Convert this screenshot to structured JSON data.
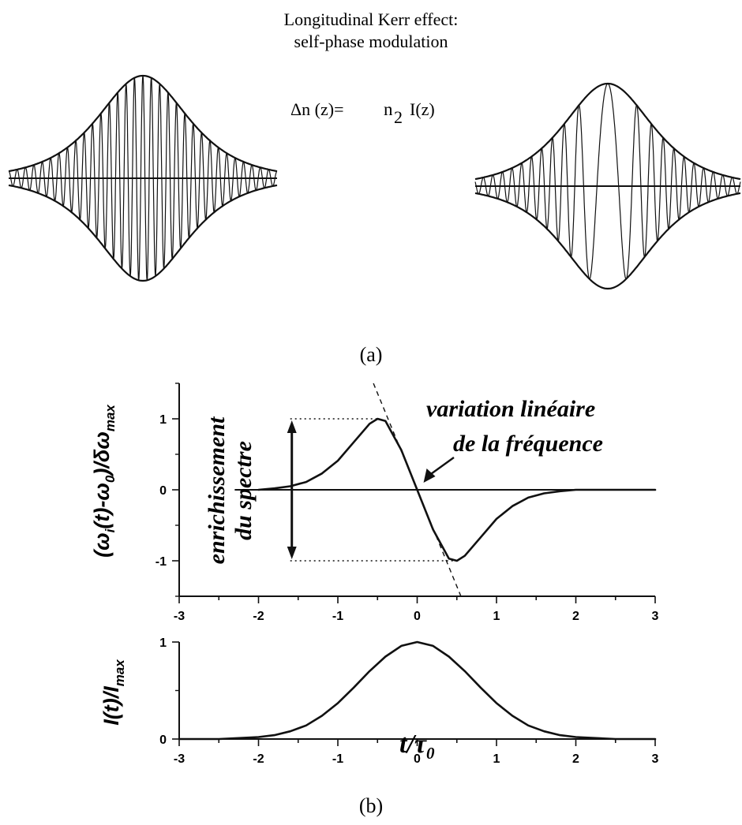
{
  "part_a": {
    "title_line1": "Longitudinal Kerr effect:",
    "title_line2": "self-phase modulation",
    "formula_lhs": "Δn (z)=",
    "formula_n": "n",
    "formula_sub": "2",
    "formula_rhs": "I(z)",
    "caption": "(a)"
  },
  "part_b": {
    "caption": "(b)",
    "top_ylabel": "(ω_i(t)-ω_0)/δω_max",
    "bottom_ylabel": "I(t)/I_max",
    "xlabel": "t/τ_0",
    "annotation_spectrum_line1": "enrichissement",
    "annotation_spectrum_line2": "du spectre",
    "annotation_linear_line1": "variation linéaire",
    "annotation_linear_line2": "de la fréquence"
  },
  "chart_data": [
    {
      "type": "line",
      "panel": "top",
      "xlabel": "",
      "ylabel": "(ω_i(t)-ω_0)/δω_max",
      "xlim": [
        -3,
        3
      ],
      "ylim": [
        -1.5,
        1.5
      ],
      "xticks": [
        "-3",
        "-2",
        "-1",
        "0",
        "1",
        "2",
        "3"
      ],
      "yticks": [
        "-1",
        "0",
        "1"
      ],
      "series": [
        {
          "x": [
            -2.0,
            -1.8,
            -1.6,
            -1.4,
            -1.2,
            -1.0,
            -0.8,
            -0.6,
            -0.5,
            -0.4,
            -0.2,
            0.0,
            0.2,
            0.4,
            0.5,
            0.6,
            0.8,
            1.0,
            1.2,
            1.4,
            1.6,
            1.8,
            2.0,
            2.2,
            2.5,
            3.0
          ],
          "y": [
            0.0,
            0.02,
            0.05,
            0.11,
            0.23,
            0.41,
            0.67,
            0.93,
            1.0,
            0.97,
            0.56,
            0.0,
            -0.56,
            -0.97,
            -1.0,
            -0.93,
            -0.67,
            -0.41,
            -0.23,
            -0.11,
            -0.05,
            -0.02,
            -0.0,
            0.0,
            0.0,
            0.0
          ]
        }
      ],
      "guide_lines": {
        "zero_line_y": 0,
        "tangent_at_x": 0,
        "tangent_slope": -2.72,
        "dotted_levels": [
          1,
          -1
        ]
      }
    },
    {
      "type": "line",
      "panel": "bottom",
      "xlabel": "t/τ_0",
      "ylabel": "I(t)/I_max",
      "xlim": [
        -3,
        3
      ],
      "ylim": [
        0,
        1
      ],
      "xticks": [
        "-3",
        "-2",
        "-1",
        "0",
        "1",
        "2",
        "3"
      ],
      "yticks": [
        "0",
        "1"
      ],
      "series": [
        {
          "x": [
            -3.0,
            -2.5,
            -2.0,
            -1.8,
            -1.6,
            -1.4,
            -1.2,
            -1.0,
            -0.8,
            -0.6,
            -0.4,
            -0.2,
            0.0,
            0.2,
            0.4,
            0.6,
            0.8,
            1.0,
            1.2,
            1.4,
            1.6,
            1.8,
            2.0,
            2.5,
            3.0
          ],
          "y": [
            0.0,
            0.0,
            0.02,
            0.04,
            0.08,
            0.14,
            0.24,
            0.37,
            0.53,
            0.7,
            0.85,
            0.96,
            1.0,
            0.96,
            0.85,
            0.7,
            0.53,
            0.37,
            0.24,
            0.14,
            0.08,
            0.04,
            0.02,
            0.0,
            0.0
          ]
        }
      ]
    }
  ]
}
